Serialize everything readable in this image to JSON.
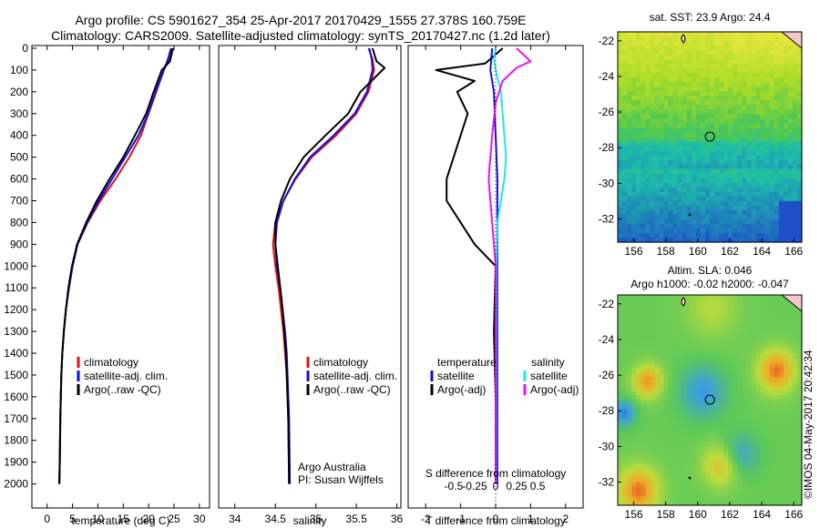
{
  "header": {
    "line1": "Argo profile: CS 5901627_354 25-Apr-2017 20170429_1555 27.378S 160.759E",
    "line2": "Climatology: CARS2009. Satellite-adjusted climatology: synTS_20170427.nc (1.2d later)"
  },
  "stamp": "©IMOS 04-May-2017 20:42:34",
  "credits": {
    "line1": "Argo Australia",
    "line2": "PI: Susan Wijffels"
  },
  "colors": {
    "climatology": "#dd1111",
    "satellite": "#1111dd",
    "argo": "#000000",
    "sat_sal": "#22e5ee",
    "argo_sal": "#ee11ee",
    "frame": "#000000"
  },
  "chart_data": [
    {
      "type": "line",
      "xlabel": "temperature (deg C)",
      "ylabel": "",
      "xticks": [
        0,
        5,
        10,
        15,
        20,
        25,
        30
      ],
      "xlim": [
        -3,
        32
      ],
      "ylim": [
        2100,
        0
      ],
      "yticks": [
        0,
        100,
        200,
        300,
        400,
        500,
        600,
        700,
        800,
        900,
        1000,
        1100,
        1200,
        1300,
        1400,
        1500,
        1600,
        1700,
        1800,
        1900,
        2000
      ],
      "legend": [
        "climatology",
        "satellite-adj. clim.",
        "Argo(..raw -QC)"
      ],
      "series": [
        {
          "name": "climatology",
          "color": "#dd1111",
          "x": [
            24.6,
            24.0,
            23.0,
            21.5,
            20.0,
            18.5,
            16.2,
            13.5,
            10.5,
            8.0,
            6.0,
            5.0,
            4.3,
            3.7,
            3.3,
            3.0,
            2.8,
            2.6,
            2.5,
            2.4
          ],
          "y": [
            0,
            50,
            100,
            200,
            300,
            400,
            500,
            600,
            700,
            800,
            900,
            1000,
            1100,
            1200,
            1300,
            1400,
            1500,
            1700,
            1900,
            2000
          ]
        },
        {
          "name": "satellite-adj. clim.",
          "color": "#1111dd",
          "x": [
            24.4,
            23.8,
            23.0,
            21.4,
            19.9,
            18.0,
            15.4,
            12.8,
            10.2,
            7.9,
            6.0,
            5.0,
            4.3,
            3.7,
            3.3,
            3.0,
            2.8,
            2.6,
            2.5,
            2.4
          ],
          "y": [
            0,
            50,
            100,
            200,
            300,
            400,
            500,
            600,
            700,
            800,
            900,
            1000,
            1100,
            1200,
            1300,
            1400,
            1500,
            1700,
            1900,
            2000
          ]
        },
        {
          "name": "Argo(..raw -QC)",
          "color": "#000000",
          "x": [
            24.8,
            24.2,
            22.6,
            21.0,
            19.5,
            17.3,
            15.0,
            12.3,
            9.8,
            7.7,
            5.9,
            4.9,
            4.2,
            3.7,
            3.3,
            3.0,
            2.8,
            2.6,
            2.5,
            2.4
          ],
          "y": [
            0,
            60,
            100,
            200,
            300,
            400,
            500,
            600,
            700,
            800,
            900,
            1000,
            1100,
            1200,
            1300,
            1400,
            1500,
            1700,
            1900,
            2000
          ]
        }
      ]
    },
    {
      "type": "line",
      "xlabel": "salinity",
      "xticks": [
        34,
        34.5,
        35,
        35.5,
        36
      ],
      "xlim": [
        33.8,
        36.05
      ],
      "ylim": [
        2100,
        0
      ],
      "legend": [
        "climatology",
        "satellite-adj. clim.",
        "Argo(..raw -QC)"
      ],
      "series": [
        {
          "name": "climatology",
          "color": "#dd1111",
          "x": [
            35.65,
            35.7,
            35.72,
            35.65,
            35.5,
            35.25,
            34.95,
            34.75,
            34.6,
            34.5,
            34.47,
            34.5,
            34.54,
            34.57,
            34.6,
            34.62,
            34.64,
            34.66,
            34.67
          ],
          "y": [
            0,
            50,
            100,
            200,
            300,
            400,
            500,
            600,
            700,
            800,
            900,
            1000,
            1100,
            1200,
            1300,
            1400,
            1500,
            1700,
            2000
          ]
        },
        {
          "name": "satellite-adj. clim.",
          "color": "#1111dd",
          "x": [
            35.66,
            35.69,
            35.7,
            35.63,
            35.48,
            35.22,
            34.93,
            34.74,
            34.6,
            34.52,
            34.5,
            34.52,
            34.56,
            34.59,
            34.62,
            34.64,
            34.65,
            34.67,
            34.68
          ],
          "y": [
            0,
            50,
            100,
            200,
            300,
            400,
            500,
            600,
            700,
            800,
            900,
            1000,
            1100,
            1200,
            1300,
            1400,
            1500,
            1700,
            2000
          ]
        },
        {
          "name": "Argo(..raw -QC)",
          "color": "#000000",
          "x": [
            35.7,
            35.75,
            35.85,
            35.55,
            35.4,
            35.12,
            34.85,
            34.68,
            34.57,
            34.5,
            34.5,
            34.53,
            34.56,
            34.59,
            34.61,
            34.63,
            34.64,
            34.66,
            34.67
          ],
          "y": [
            0,
            60,
            90,
            200,
            300,
            400,
            500,
            600,
            700,
            800,
            900,
            1000,
            1100,
            1200,
            1300,
            1400,
            1500,
            1700,
            2000
          ]
        }
      ]
    },
    {
      "type": "line",
      "xlabel": "T difference from climatology",
      "xlabel_top": "S difference from climatology",
      "xticks": [
        -2,
        -1,
        0,
        1,
        2
      ],
      "xticks_top": [
        "-0.5",
        "-0.25",
        "0",
        "0.25",
        "0.5"
      ],
      "xlim": [
        -2.5,
        2.5
      ],
      "ylim": [
        2100,
        0
      ],
      "legend_temperature": {
        "title": "temperature",
        "items": [
          "satellite",
          "Argo(-adj)"
        ]
      },
      "legend_salinity": {
        "title": "salinity",
        "items": [
          "satellite",
          "Argo(-adj)"
        ]
      },
      "series": [
        {
          "name": "satellite",
          "color": "#1111dd",
          "x": [
            -0.1,
            -0.15,
            -0.05,
            0.0,
            0.05,
            0.05,
            0.05,
            0.05,
            0.05,
            0.05
          ],
          "y": [
            0,
            100,
            200,
            400,
            600,
            800,
            1000,
            1400,
            1800,
            2000
          ]
        },
        {
          "name": "Argo(-adj)",
          "color": "#000000",
          "x": [
            0.2,
            -0.3,
            -1.7,
            -0.6,
            -1.1,
            -0.8,
            -1.0,
            -1.4,
            -1.4,
            -0.6,
            0.0,
            -0.05,
            0.0,
            0.0
          ],
          "y": [
            0,
            70,
            100,
            150,
            200,
            300,
            400,
            600,
            700,
            900,
            1000,
            1300,
            1600,
            2000
          ]
        },
        {
          "name": "satellite",
          "color": "#22e5ee",
          "x": [
            0.0,
            -0.05,
            0.0,
            0.15,
            0.2,
            0.25,
            0.3,
            0.25,
            0.15,
            0.05,
            0.02,
            0.01
          ],
          "y": [
            0,
            50,
            100,
            200,
            300,
            400,
            500,
            600,
            700,
            800,
            1000,
            2000
          ]
        },
        {
          "name": "Argo(-adj)",
          "color": "#ee11ee",
          "x": [
            0.6,
            1.0,
            0.6,
            0.2,
            0.0,
            -0.1,
            -0.2,
            -0.1,
            0.0,
            0.0
          ],
          "y": [
            0,
            60,
            90,
            150,
            250,
            400,
            600,
            800,
            1000,
            2000
          ]
        }
      ]
    },
    {
      "type": "heatmap",
      "title": "sat. SST: 23.9  Argo: 24.4",
      "xticks": [
        156,
        158,
        160,
        162,
        164,
        166
      ],
      "yticks": [
        -22,
        -24,
        -26,
        -28,
        -30,
        -32
      ],
      "xlim": [
        155,
        166.5
      ],
      "ylim": [
        -33.3,
        -21.5
      ],
      "marker": {
        "lon": 160.759,
        "lat": -27.378
      }
    },
    {
      "type": "heatmap",
      "title_line1": "Altim. SLA: 0.046",
      "title_line2": "Argo h1000: -0.02  h2000: -0.047",
      "xticks": [
        156,
        158,
        160,
        162,
        164,
        166
      ],
      "yticks": [
        -22,
        -24,
        -26,
        -28,
        -30,
        -32
      ],
      "xlim": [
        155,
        166.5
      ],
      "ylim": [
        -33.3,
        -21.5
      ],
      "marker": {
        "lon": 160.759,
        "lat": -27.378
      }
    }
  ]
}
